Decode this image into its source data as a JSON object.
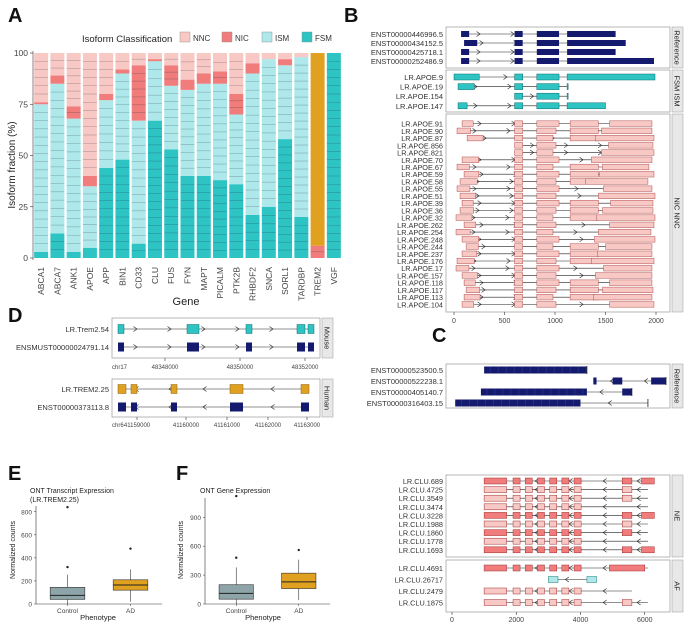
{
  "panel_labels": [
    "A",
    "B",
    "C",
    "D",
    "E",
    "F"
  ],
  "colors": {
    "NNC": "#f8c8c4",
    "NIC": "#f07c7c",
    "ISM": "#aee8ea",
    "FSM": "#2ec4c4",
    "reference": "#141a6e",
    "orange": "#e0a020",
    "gray_box": "#8da4a8",
    "strip_bg": "#e8e8e8"
  },
  "chart_data": [
    {
      "type": "bar",
      "panel": "A",
      "title": "Isoform Classification",
      "xlabel": "Gene",
      "ylabel": "Isoform fraction (%)",
      "ylim": [
        0,
        100
      ],
      "yticks": [
        "0",
        "25",
        "50",
        "75",
        "100"
      ],
      "legend": [
        "NNC",
        "NIC",
        "ISM",
        "FSM"
      ],
      "categories": [
        "ABCA1",
        "ABCA7",
        "ANK1",
        "APOE",
        "APP",
        "BIN1",
        "CD33",
        "CLU",
        "FUS",
        "FYN",
        "MAPT",
        "PICALM",
        "PTK2B",
        "RHBDF2",
        "SNCA",
        "SORL1",
        "TARDBP",
        "TREM2",
        "VGF"
      ],
      "series": [
        {
          "name": "FSM",
          "values": [
            3,
            12,
            3,
            5,
            44,
            48,
            7,
            67,
            53,
            40,
            40,
            38,
            36,
            21,
            25,
            58,
            20,
            0,
            100
          ]
        },
        {
          "name": "ISM",
          "values": [
            72,
            73,
            65,
            30,
            33,
            42,
            60,
            29,
            31,
            42,
            45,
            47,
            34,
            69,
            72,
            36,
            78,
            0,
            0
          ]
        },
        {
          "name": "NIC",
          "values": [
            1,
            4,
            6,
            5,
            3,
            2,
            27,
            1,
            10,
            5,
            5,
            6,
            10,
            5,
            0,
            3,
            0,
            6,
            0
          ]
        },
        {
          "name": "NNC",
          "values": [
            24,
            11,
            26,
            60,
            20,
            8,
            6,
            3,
            6,
            13,
            10,
            9,
            20,
            5,
            3,
            3,
            2,
            0,
            0
          ]
        }
      ],
      "extra_segment": {
        "name": "orange",
        "category": "TREM2",
        "value": 94
      }
    },
    {
      "type": "box",
      "panel": "E",
      "title": "ONT Transcript Expression",
      "subtitle": "(LR.TREM2.25)",
      "xlabel": "Phenotype",
      "ylabel": "Normalized counts",
      "ylim": [
        0,
        850
      ],
      "yticks": [
        "0",
        "200",
        "400",
        "600",
        "800"
      ],
      "categories": [
        "Control",
        "AD"
      ],
      "boxes": [
        {
          "q1": 40,
          "median": 75,
          "q3": 145,
          "lo": 0,
          "hi": 255,
          "outliers": [
            320,
            840
          ]
        },
        {
          "q1": 120,
          "median": 165,
          "q3": 210,
          "lo": 20,
          "hi": 300,
          "outliers": [
            480
          ]
        }
      ]
    },
    {
      "type": "box",
      "panel": "F",
      "title": "ONT Gene Expression",
      "xlabel": "Phenotype",
      "ylabel": "Normalized counts",
      "ylim": [
        0,
        1100
      ],
      "yticks": [
        "0",
        "300",
        "600",
        "900"
      ],
      "categories": [
        "Control",
        "AD"
      ],
      "boxes": [
        {
          "q1": 50,
          "median": 110,
          "q3": 200,
          "lo": 0,
          "hi": 380,
          "outliers": [
            480,
            1120
          ]
        },
        {
          "q1": 160,
          "median": 230,
          "q3": 320,
          "lo": 40,
          "hi": 460,
          "outliers": [
            560
          ]
        }
      ]
    }
  ],
  "panelB": {
    "strips": [
      "Reference",
      "FSM ISM",
      "NIC NNC"
    ],
    "reference_labels": [
      "ENST00000446996.5",
      "ENST00000434152.5",
      "ENST00000425718.1",
      "ENST00000252486.9"
    ],
    "fsm_ism_labels": [
      "LR.APOE.9",
      "LR.APOE.19",
      "LR.APOE.154",
      "LR.APOE.147"
    ],
    "nic_nnc_labels": [
      "LR.APOE.91",
      "LR.APOE.90",
      "LR.APOE.87",
      "LR.APOE.856",
      "LR.APOE.821",
      "LR.APOE.70",
      "LR.APOE.67",
      "LR.APOE.59",
      "LR.APOE.58",
      "LR.APOE.55",
      "LR.APOE.51",
      "LR.APOE.39",
      "LR.APOE.36",
      "LR.APOE.32",
      "LR.APOE.262",
      "LR.APOE.254",
      "LR.APOE.248",
      "LR.APOE.244",
      "LR.APOE.237",
      "LR.APOE.176",
      "LR.APOE.17",
      "LR.APOE.157",
      "LR.APOE.118",
      "LR.APOE.117",
      "LR.APOE.113",
      "LR.APOE.104"
    ],
    "xticks": [
      "0",
      "500",
      "1000",
      "1500",
      "2000"
    ]
  },
  "panelC": {
    "strips": [
      "Reference",
      "NE",
      "AF"
    ],
    "reference_labels": [
      "ENST00000523500.5",
      "ENST00000522238.1",
      "ENST00000405140.7",
      "ENST00000316403.15"
    ],
    "ne_labels": [
      "LR.CLU.689",
      "LR.CLU.4725",
      "LR.CLU.3549",
      "LR.CLU.3474",
      "LR.CLU.3228",
      "LR.CLU.1988",
      "LR.CLU.1860",
      "LR.CLU.1778",
      "LR.CLU.1693"
    ],
    "af_labels": [
      "LR.CLU.4691",
      "LR.CLU.26717",
      "LR.CLU.2479",
      "LR.CLU.1875"
    ],
    "xticks": [
      "0",
      "2000",
      "4000",
      "6000"
    ]
  },
  "panelD": {
    "mouse_labels": [
      "LR.Trem2.54",
      "ENSMUST00000024791.14"
    ],
    "human_labels": [
      "LR.TREM2.25",
      "ENST00000373113.8"
    ],
    "mouse_axis": {
      "chrom": "chr17",
      "ticks": [
        "48348000",
        "48350000",
        "48352000"
      ]
    },
    "human_axis": {
      "chrom": "chr6",
      "ticks": [
        "41159000",
        "41160000",
        "41161000",
        "41162000",
        "41163000"
      ]
    },
    "strips": [
      "Mouse",
      "Human"
    ]
  }
}
